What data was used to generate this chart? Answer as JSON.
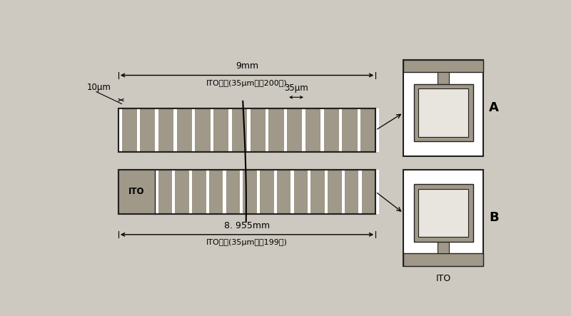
{
  "bg_color": "#cdc9c0",
  "strip_color": "#a09888",
  "white_gap_color": "#ffffff",
  "dark_strip_color": "#888078",
  "border_color": "#222222",
  "figure_bg": "#cdc9c0",
  "annotations": {
    "top_dim_label": "9mm",
    "top_dim_label2": "ITO基线(35μm宽、200根)",
    "left_label": "10μm",
    "right_dim_label": "35μm",
    "bottom_dim_label": "8. 955mm",
    "bottom_dim_label2": "ITO基线(35μm宽、199根)",
    "ito_label": "ITO",
    "A_label": "A",
    "B_label": "B",
    "ITO_bottom": "ITO"
  }
}
